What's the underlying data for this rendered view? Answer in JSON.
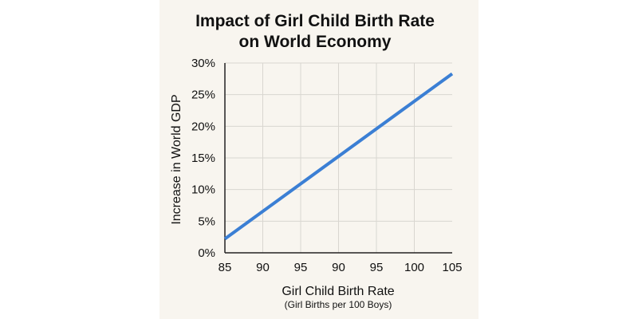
{
  "chart_data": {
    "type": "line",
    "title_lines": [
      "Impact of Girl Child Birth Rate",
      "on World Economy"
    ],
    "xlabel": "Girl Child Birth Rate",
    "xlabel_sub": "(Girl Births per 100 Boys)",
    "ylabel": "Increase in World GDP",
    "x_tick_labels": [
      "85",
      "90",
      "95",
      "90",
      "95",
      "100",
      "105"
    ],
    "y_tick_labels": [
      "0%",
      "5%",
      "10%",
      "15%",
      "20%",
      "25%",
      "30%"
    ],
    "ylim": [
      0,
      30
    ],
    "grid": true,
    "series": [
      {
        "color": "#3b7fd4",
        "points": [
          {
            "tick_index": 0,
            "y": 2.2
          },
          {
            "tick_index": 6,
            "y": 28.3
          }
        ]
      }
    ]
  }
}
